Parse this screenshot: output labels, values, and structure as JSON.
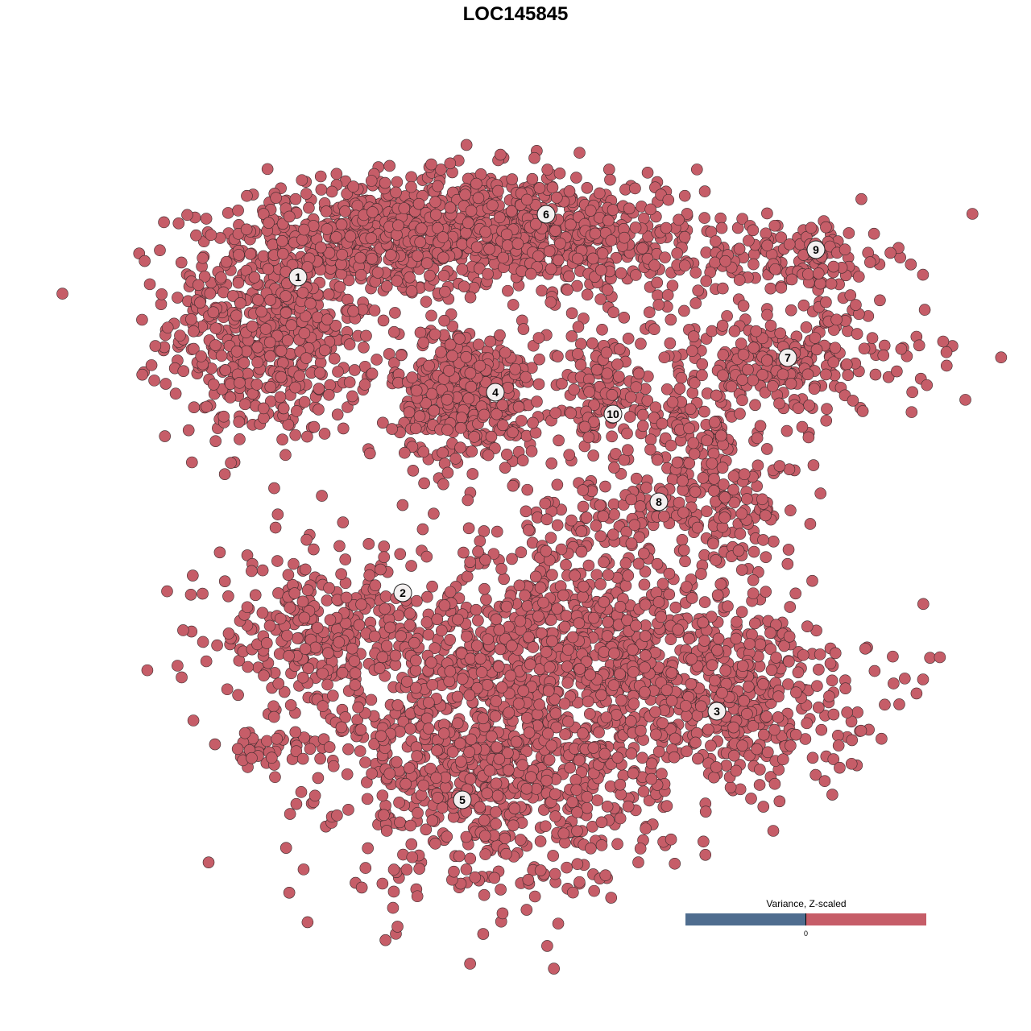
{
  "chart_data": {
    "type": "scatter",
    "title": "LOC145845",
    "xlabel": "",
    "ylabel": "",
    "grid": false,
    "axes_visible": false,
    "xlim": [
      -46,
      52
    ],
    "ylim": [
      -50,
      48
    ],
    "point_color": "#c65d68",
    "point_stroke": "#3a2a2c",
    "clusters": [
      {
        "id": "1",
        "label_at": [
          -27,
          29.6
        ],
        "blobs": [
          {
            "c": [
              -30,
              24
            ],
            "sd": [
              6.5,
              7.5
            ],
            "n": 650
          },
          {
            "c": [
              -16,
              34
            ],
            "sd": [
              6,
              3.5
            ],
            "n": 250
          }
        ]
      },
      {
        "id": "6",
        "label_at": [
          3.8,
          37.4
        ],
        "blobs": [
          {
            "c": [
              -4,
              36
            ],
            "sd": [
              11,
              3.5
            ],
            "n": 650
          },
          {
            "c": [
              12,
              33
            ],
            "sd": [
              7,
              4
            ],
            "n": 200
          }
        ]
      },
      {
        "id": "4",
        "label_at": [
          -2.5,
          15.3
        ],
        "blobs": [
          {
            "c": [
              -6,
              15
            ],
            "sd": [
              4.5,
              4.2
            ],
            "n": 420
          }
        ]
      },
      {
        "id": "9",
        "label_at": [
          37.3,
          33
        ],
        "blobs": [
          {
            "c": [
              35,
              32
            ],
            "sd": [
              6,
              2.5
            ],
            "n": 150
          }
        ]
      },
      {
        "id": "7",
        "label_at": [
          33.8,
          19.6
        ],
        "blobs": [
          {
            "c": [
              33,
              19
            ],
            "sd": [
              9,
              3.5
            ],
            "n": 260
          }
        ]
      },
      {
        "id": "10",
        "label_at": [
          12.1,
          12.6
        ],
        "blobs": [
          {
            "c": [
              11,
              15
            ],
            "sd": [
              4,
              4
            ],
            "n": 130
          }
        ]
      },
      {
        "id": "8",
        "label_at": [
          17.8,
          1.7
        ],
        "blobs": [
          {
            "c": [
              26,
              2
            ],
            "sd": [
              5,
              4
            ],
            "n": 160
          },
          {
            "c": [
              21,
              10
            ],
            "sd": [
              3,
              3
            ],
            "n": 80
          },
          {
            "c": [
              10,
              0
            ],
            "sd": [
              6,
              2
            ],
            "n": 70
          }
        ]
      },
      {
        "id": "2",
        "label_at": [
          -14,
          -9.6
        ],
        "blobs": [
          {
            "c": [
              -24,
              -15
            ],
            "sd": [
              6.5,
              4.5
            ],
            "n": 300
          },
          {
            "c": [
              -30,
              -29
            ],
            "sd": [
              3.5,
              1.5
            ],
            "n": 40
          }
        ]
      },
      {
        "id": "5",
        "label_at": [
          -6.6,
          -35.3
        ],
        "blobs": [
          {
            "c": [
              -2,
              -32
            ],
            "sd": [
              10,
              7.5
            ],
            "n": 800
          },
          {
            "c": [
              6,
              -15
            ],
            "sd": [
              11,
              7
            ],
            "n": 750
          }
        ]
      },
      {
        "id": "3",
        "label_at": [
          25,
          -24.3
        ],
        "blobs": [
          {
            "c": [
              26,
              -22
            ],
            "sd": [
              9,
              6
            ],
            "n": 460
          }
        ]
      }
    ]
  },
  "legend": {
    "title": "Variance, Z-scaled",
    "zero_label": "0",
    "low_color": "#4f6d8f",
    "high_color": "#c65d68"
  }
}
